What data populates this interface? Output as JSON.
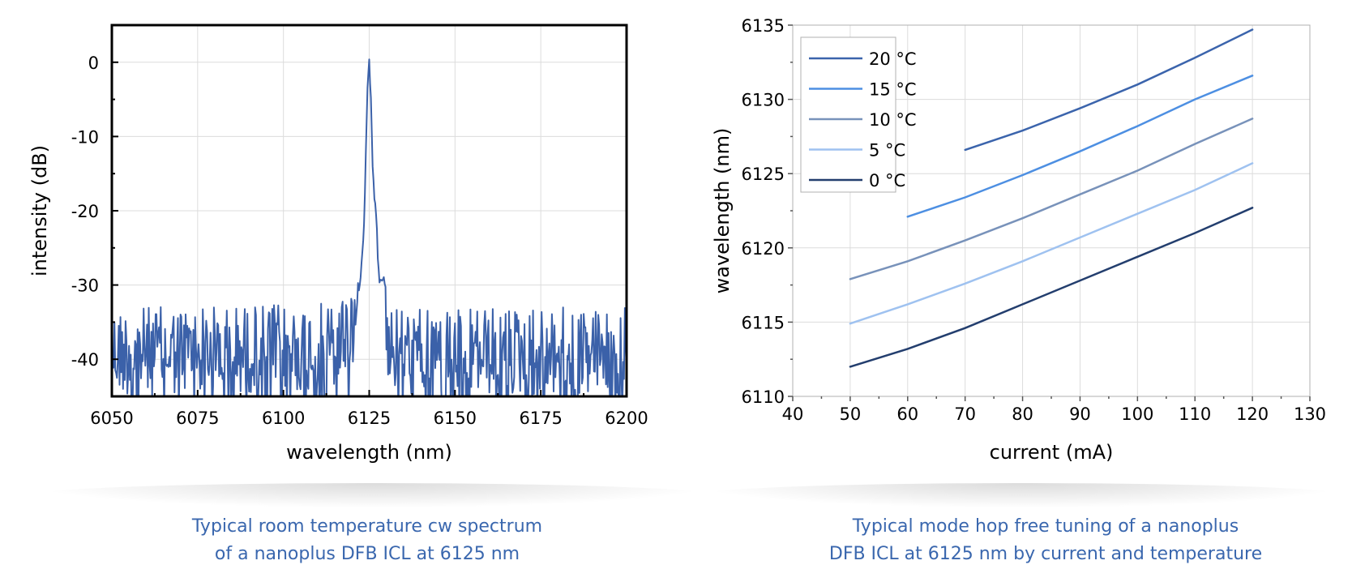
{
  "colors": {
    "spectrum": "#3b61a9",
    "s20": "#3b64ac",
    "s15": "#4d8fe2",
    "s10": "#7892ba",
    "s5": "#9fc2f0",
    "s0": "#233e6e",
    "caption": "#3a67ae"
  },
  "captions": {
    "left": [
      "Typical room temperature cw spectrum",
      "of a nanoplus DFB ICL at 6125 nm"
    ],
    "right": [
      "Typical mode hop free tuning of a nanoplus",
      "DFB ICL at 6125 nm by current and temperature"
    ]
  },
  "chart_data": [
    {
      "type": "line",
      "xlabel": "wavelength (nm)",
      "ylabel": "intensity (dB)",
      "xlim": [
        6050,
        6200
      ],
      "ylim": [
        -45,
        5
      ],
      "xticks": [
        6050,
        6075,
        6100,
        6125,
        6150,
        6175,
        6200
      ],
      "yticks": [
        0,
        -10,
        -20,
        -30,
        -40
      ],
      "grid": true,
      "series": [
        {
          "noise_floor_db": [
            -45,
            -33
          ],
          "x": [
            6050,
            6115,
            6117,
            6119,
            6120,
            6121,
            6122,
            6123,
            6123.5,
            6124,
            6124.5,
            6125,
            6125.5,
            6126,
            6126.5,
            6127,
            6127.5,
            6128,
            6129,
            6130,
            6131,
            6132,
            6135,
            6200
          ],
          "y": [
            -36,
            -35,
            -33,
            -30,
            -31,
            -28,
            -31,
            -26,
            -22,
            -12,
            -4,
            0,
            -5,
            -14,
            -19,
            -20,
            -26,
            -30,
            -29,
            -31,
            -33,
            -35,
            -36,
            -36
          ]
        }
      ]
    },
    {
      "type": "line",
      "xlabel": "current (mA)",
      "ylabel": "wavelength (nm)",
      "xlim": [
        40,
        130
      ],
      "ylim": [
        6110,
        6135
      ],
      "xticks": [
        40,
        50,
        60,
        70,
        80,
        90,
        100,
        110,
        120,
        130
      ],
      "yticks": [
        6110,
        6115,
        6120,
        6125,
        6130,
        6135
      ],
      "grid": true,
      "legend": "top-left",
      "series": [
        {
          "name": "20 °C",
          "x": [
            70,
            80,
            90,
            100,
            110,
            120
          ],
          "y": [
            6126.6,
            6127.9,
            6129.4,
            6131.0,
            6132.8,
            6134.7
          ]
        },
        {
          "name": "15 °C",
          "x": [
            60,
            70,
            80,
            90,
            100,
            110,
            120
          ],
          "y": [
            6122.1,
            6123.4,
            6124.9,
            6126.5,
            6128.2,
            6130.0,
            6131.6
          ]
        },
        {
          "name": "10 °C",
          "x": [
            50,
            60,
            70,
            80,
            90,
            100,
            110,
            120
          ],
          "y": [
            6117.9,
            6119.1,
            6120.5,
            6122.0,
            6123.6,
            6125.2,
            6127.0,
            6128.7
          ]
        },
        {
          "name": "5 °C",
          "x": [
            50,
            60,
            70,
            80,
            90,
            100,
            110,
            120
          ],
          "y": [
            6114.9,
            6116.2,
            6117.6,
            6119.1,
            6120.7,
            6122.3,
            6123.9,
            6125.7
          ]
        },
        {
          "name": "0 °C",
          "x": [
            50,
            60,
            70,
            80,
            90,
            100,
            110,
            120
          ],
          "y": [
            6112.0,
            6113.2,
            6114.6,
            6116.2,
            6117.8,
            6119.4,
            6121.0,
            6122.7
          ]
        }
      ]
    }
  ]
}
